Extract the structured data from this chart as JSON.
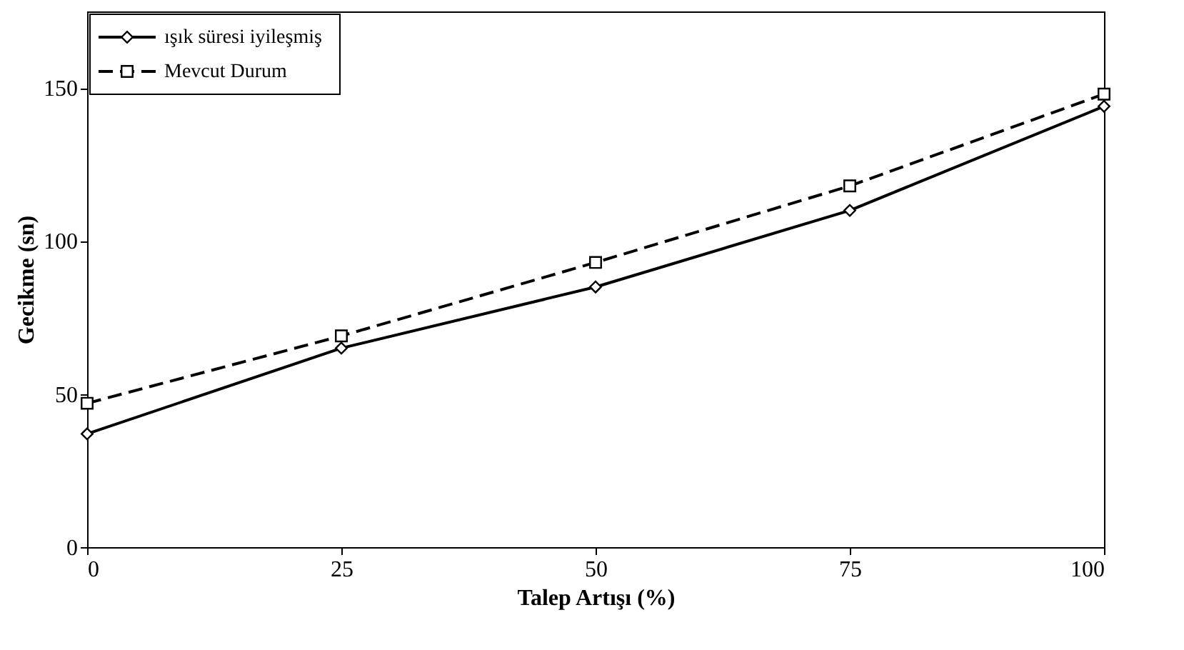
{
  "chart_data": {
    "type": "line",
    "xlabel": "Talep Artışı (%)",
    "ylabel": "Gecikme (sn)",
    "x": [
      0,
      25,
      50,
      75,
      100
    ],
    "series": [
      {
        "name": "ışık süresi iyileşmiş",
        "color": "#000000",
        "marker": "diamond",
        "line_style": "solid",
        "values": [
          37,
          65,
          85,
          110,
          144
        ]
      },
      {
        "name": "Mevcut Durum",
        "color": "#000000",
        "marker": "square",
        "line_style": "dashed",
        "values": [
          47,
          69,
          93,
          118,
          148
        ]
      }
    ],
    "xlim": [
      0,
      100
    ],
    "xticks": [
      0,
      25,
      50,
      75,
      100
    ],
    "ylim": [
      0,
      175
    ],
    "yticks": [
      0,
      50,
      100,
      150
    ],
    "grid": false,
    "legend": "top left"
  }
}
